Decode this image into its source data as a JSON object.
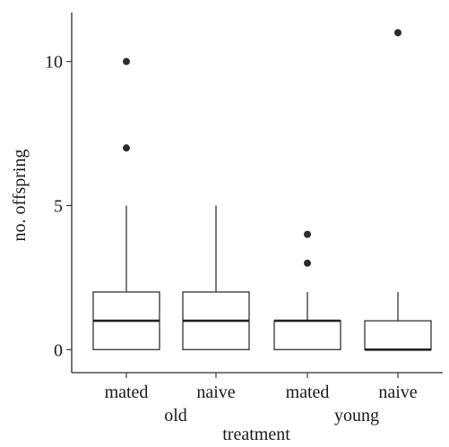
{
  "chart_data": {
    "type": "box",
    "xlabel": "treatment",
    "ylabel": "no. offspring",
    "ylim": [
      -0.8,
      11.7
    ],
    "yticks": [
      0,
      5,
      10
    ],
    "grid": false,
    "groups": [
      "old",
      "young"
    ],
    "boxes": [
      {
        "category": "mated",
        "group": "old",
        "q1": 0,
        "median": 1,
        "q3": 2,
        "whisker_low": 0,
        "whisker_high": 5,
        "outliers": [
          7,
          10
        ]
      },
      {
        "category": "naive",
        "group": "old",
        "q1": 0,
        "median": 1,
        "q3": 2,
        "whisker_low": 0,
        "whisker_high": 5,
        "outliers": []
      },
      {
        "category": "mated",
        "group": "young",
        "q1": 0,
        "median": 1,
        "q3": 1,
        "whisker_low": 0,
        "whisker_high": 2,
        "outliers": [
          3,
          4
        ]
      },
      {
        "category": "naive",
        "group": "young",
        "q1": 0,
        "median": 0,
        "q3": 1,
        "whisker_low": 0,
        "whisker_high": 2,
        "outliers": [
          11
        ]
      }
    ]
  }
}
